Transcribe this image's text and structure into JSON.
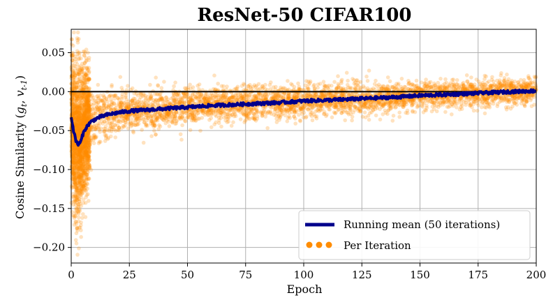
{
  "chart_data": {
    "type": "scatter",
    "title": "ResNet-50 CIFAR100",
    "xlabel": "Epoch",
    "ylabel": "Cosine Similarity (g_t, v_t-1)",
    "ylabel_prefix": "Cosine Similarity (",
    "ylabel_g": "g",
    "ylabel_g_sub": "t",
    "ylabel_comma": ", ",
    "ylabel_v": "v",
    "ylabel_v_sub": "t-1",
    "ylabel_close": ")",
    "xlim": [
      0,
      200
    ],
    "ylim": [
      -0.22,
      0.08
    ],
    "grid": true,
    "reference_line_y": 0.0,
    "x_ticks": [
      0,
      25,
      50,
      75,
      100,
      125,
      150,
      175,
      200
    ],
    "x_tick_labels": [
      "0",
      "25",
      "50",
      "75",
      "100",
      "125",
      "150",
      "175",
      "200"
    ],
    "y_ticks": [
      0.05,
      0.0,
      -0.05,
      -0.1,
      -0.15,
      -0.2
    ],
    "y_tick_labels": [
      "0.05",
      "0.00",
      "−0.05",
      "−0.10",
      "−0.15",
      "−0.20"
    ],
    "legend": {
      "position": "lower-right",
      "entries": [
        "Running mean (50 iterations)",
        "Per Iteration"
      ]
    },
    "series": [
      {
        "name": "Running mean (50 iterations)",
        "kind": "line",
        "color": "#00008b",
        "x": [
          0,
          1,
          2,
          3,
          4,
          5,
          6,
          8,
          10,
          12,
          15,
          20,
          25,
          30,
          40,
          50,
          60,
          75,
          90,
          100,
          110,
          125,
          140,
          150,
          160,
          175,
          190,
          200
        ],
        "y": [
          -0.032,
          -0.05,
          -0.063,
          -0.068,
          -0.065,
          -0.055,
          -0.048,
          -0.04,
          -0.036,
          -0.033,
          -0.03,
          -0.027,
          -0.025,
          -0.024,
          -0.022,
          -0.02,
          -0.018,
          -0.016,
          -0.014,
          -0.012,
          -0.011,
          -0.009,
          -0.007,
          -0.005,
          -0.004,
          -0.002,
          0.0,
          0.001
        ]
      },
      {
        "name": "Per Iteration",
        "kind": "scatter",
        "color": "#ff8c00",
        "x": [
          0,
          1,
          2,
          3,
          5,
          8,
          10,
          15,
          20,
          25,
          35,
          50,
          65,
          75,
          90,
          100,
          115,
          125,
          140,
          150,
          165,
          175,
          190,
          200
        ],
        "y": [
          -0.032,
          -0.05,
          -0.063,
          -0.068,
          -0.055,
          -0.04,
          -0.036,
          -0.03,
          -0.027,
          -0.025,
          -0.023,
          -0.02,
          -0.017,
          -0.016,
          -0.014,
          -0.012,
          -0.01,
          -0.009,
          -0.007,
          -0.005,
          -0.003,
          -0.002,
          0.0,
          0.001
        ],
        "spread": [
          0.06,
          0.07,
          0.075,
          0.075,
          0.06,
          0.045,
          0.04,
          0.034,
          0.03,
          0.028,
          0.026,
          0.024,
          0.023,
          0.022,
          0.021,
          0.02,
          0.019,
          0.019,
          0.018,
          0.018,
          0.017,
          0.017,
          0.017,
          0.017
        ]
      }
    ]
  },
  "colors": {
    "running_mean": "#00008b",
    "per_iteration": "#ff8c00",
    "grid": "#b0b0b0",
    "zero_line": "#000000"
  }
}
